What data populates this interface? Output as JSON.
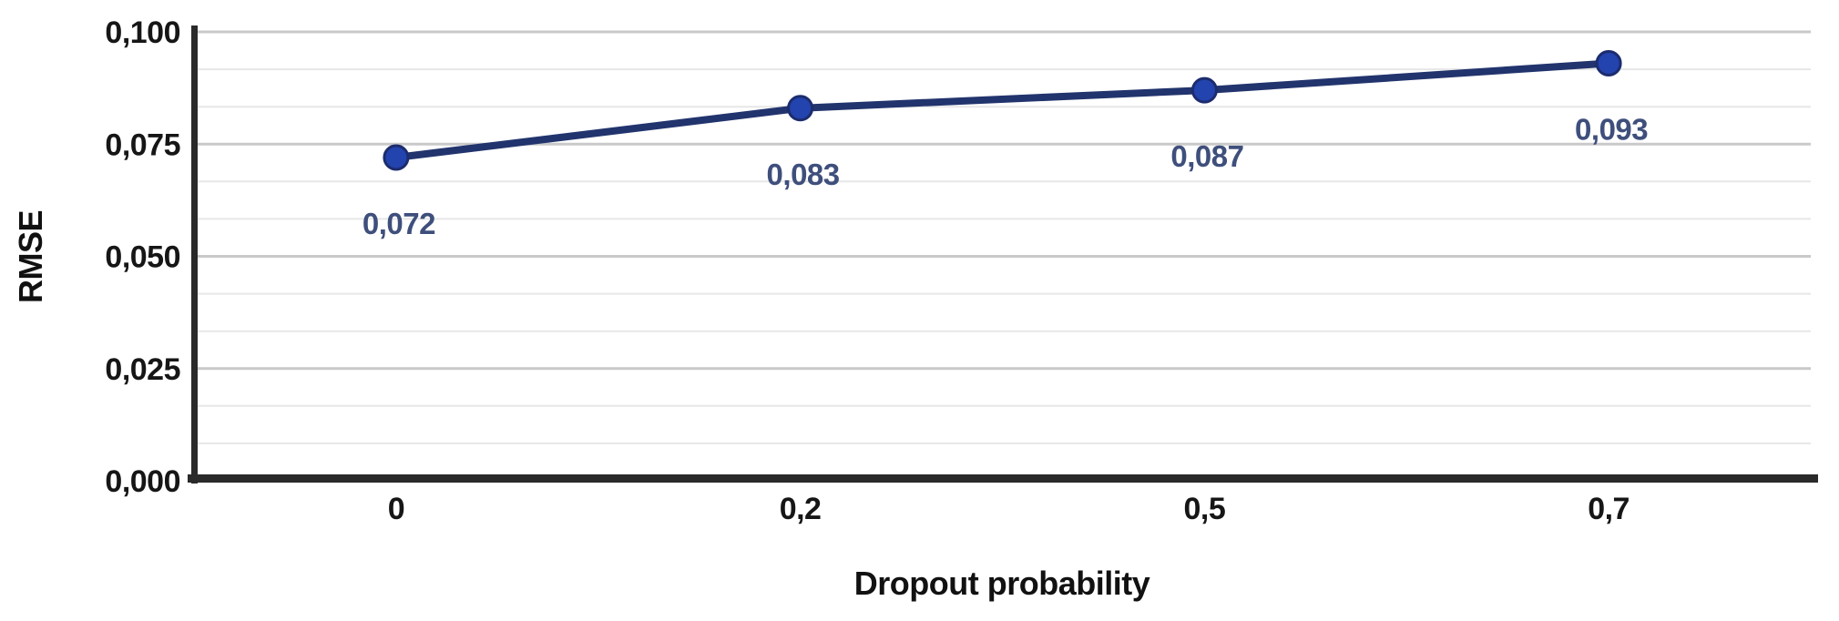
{
  "chart_data": {
    "type": "line",
    "title": "",
    "xlabel": "Dropout probability",
    "ylabel": "RMSE",
    "categories": [
      "0",
      "0,2",
      "0,5",
      "0,7"
    ],
    "x_values": [
      0,
      0.2,
      0.5,
      0.7
    ],
    "series": [
      {
        "name": "RMSE",
        "values": [
          0.072,
          0.083,
          0.087,
          0.093
        ],
        "point_labels": [
          "0,072",
          "0,083",
          "0,087",
          "0,093"
        ]
      }
    ],
    "y_axis": {
      "ticks": [
        0,
        0.025,
        0.05,
        0.075,
        0.1
      ],
      "tick_labels": [
        "0,000",
        "0,025",
        "0,050",
        "0,075",
        "0,100"
      ],
      "range": [
        0,
        0.1
      ],
      "minor_divisions_per_major": 3
    },
    "legend": "none",
    "grid": "horizontal",
    "decimal_separator": ",",
    "colors": {
      "background": "#ffffff",
      "line": "#22346d",
      "marker_fill": "#2343ae",
      "marker_edge": "#1c2c6e",
      "point_label": "#3f4f7c",
      "axis_line": "#2a2a2a",
      "tick_label": "#161616",
      "axis_title": "#111111",
      "gridline_major": "#c9c9c9",
      "gridline_minor": "#e7e7e7"
    }
  }
}
